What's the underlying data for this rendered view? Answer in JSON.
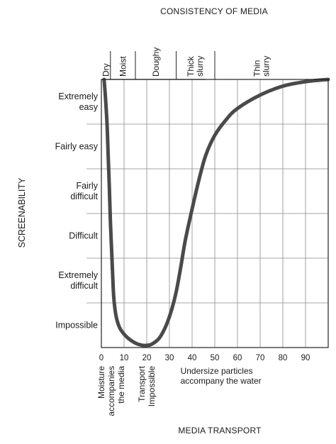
{
  "chart_data": {
    "type": "line",
    "title": "CONSISTENCY OF MEDIA",
    "xlabel": "MEDIA TRANSPORT",
    "ylabel": "SCREENABILITY",
    "xlim": [
      0,
      100
    ],
    "x_ticks": [
      0,
      10,
      20,
      30,
      40,
      50,
      60,
      70,
      80,
      90
    ],
    "y_categories": [
      "Impossible",
      "Extremely difficult",
      "Difficult",
      "Fairly difficult",
      "Fairly easy",
      "Extremely easy"
    ],
    "y_category_lines": [
      "Impossible",
      "Extremely\ndifficult",
      "Difficult",
      "Fairly\ndifficult",
      "Fairly easy",
      "Extremely\neasy"
    ],
    "ylim": [
      0,
      6
    ],
    "consistency_regions": [
      {
        "label": "Dry",
        "x_start": 0,
        "x_end": 4
      },
      {
        "label": "Moist",
        "x_start": 4,
        "x_end": 15
      },
      {
        "label": "Doughy",
        "x_start": 15,
        "x_end": 33
      },
      {
        "label": "Thick\nslurry",
        "x_start": 33,
        "x_end": 50
      },
      {
        "label": "Thin\nslurry",
        "x_start": 50,
        "x_end": 100
      }
    ],
    "annotations": [
      {
        "text": "Moisture\naccompanies\nthe media",
        "x": 5
      },
      {
        "text": "Transport\nImpossible",
        "x": 20
      },
      {
        "text": "Undersize particles\naccompany the water",
        "x": 38
      }
    ],
    "grid": true,
    "series": [
      {
        "x": [
          1.2,
          1.8,
          2.5,
          3.0,
          3.5,
          4.0,
          4.5,
          5.0,
          5.5,
          6.5,
          8,
          10,
          12,
          15,
          18,
          20,
          22,
          25,
          27,
          29,
          31,
          33,
          35,
          37,
          40,
          43,
          46,
          50,
          55,
          60,
          70,
          80,
          90,
          100
        ],
        "y": [
          6.0,
          5.6,
          5.0,
          4.3,
          3.6,
          2.8,
          2.2,
          1.6,
          1.1,
          0.7,
          0.45,
          0.3,
          0.2,
          0.1,
          0.05,
          0.05,
          0.07,
          0.18,
          0.33,
          0.55,
          0.85,
          1.25,
          1.8,
          2.4,
          3.1,
          3.75,
          4.3,
          4.75,
          5.1,
          5.35,
          5.65,
          5.85,
          5.95,
          6.0
        ]
      }
    ]
  }
}
